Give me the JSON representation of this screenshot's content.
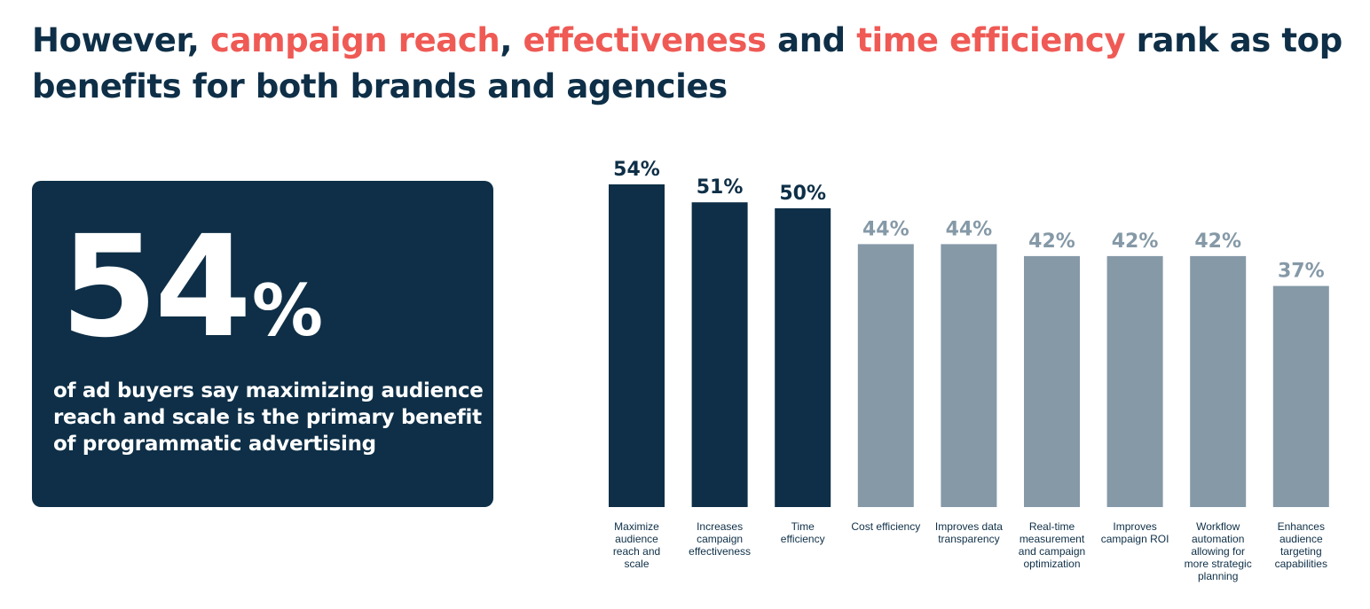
{
  "headline": {
    "part1": "However, ",
    "part2": "campaign reach",
    "part3": ", ",
    "part4": "effectiveness",
    "part5": " and ",
    "part6": "time efficiency",
    "part7": " rank as top benefits for both brands and agencies"
  },
  "stat": {
    "number": "54",
    "percent_sign": "%",
    "caption": "of ad buyers say maximizing audience reach and scale is the primary benefit of programmatic advertising"
  },
  "colors": {
    "dark": "#0e2f47",
    "muted": "#8599a7",
    "accent": "#ef5a55"
  },
  "chart_data": {
    "type": "bar",
    "categories": [
      [
        "Maximize",
        "audience",
        "reach and",
        "scale"
      ],
      [
        "Increases",
        "campaign",
        "effectiveness"
      ],
      [
        "Time",
        "efficiency"
      ],
      [
        "Cost efficiency"
      ],
      [
        "Improves data",
        "transparency"
      ],
      [
        "Real-time",
        "measurement",
        "and campaign",
        "optimization"
      ],
      [
        "Improves",
        "campaign ROI"
      ],
      [
        "Workflow",
        "automation",
        "allowing for",
        "more strategic",
        "planning"
      ],
      [
        "Enhances",
        "audience",
        "targeting",
        "capabilities"
      ]
    ],
    "values": [
      54,
      51,
      50,
      44,
      44,
      42,
      42,
      42,
      37
    ],
    "value_labels": [
      "54%",
      "51%",
      "50%",
      "44%",
      "44%",
      "42%",
      "42%",
      "42%",
      "37%"
    ],
    "highlighted": [
      true,
      true,
      true,
      false,
      false,
      false,
      false,
      false,
      false
    ],
    "unit": "%",
    "ylim": [
      0,
      54
    ],
    "grid": false,
    "legend": "none"
  }
}
